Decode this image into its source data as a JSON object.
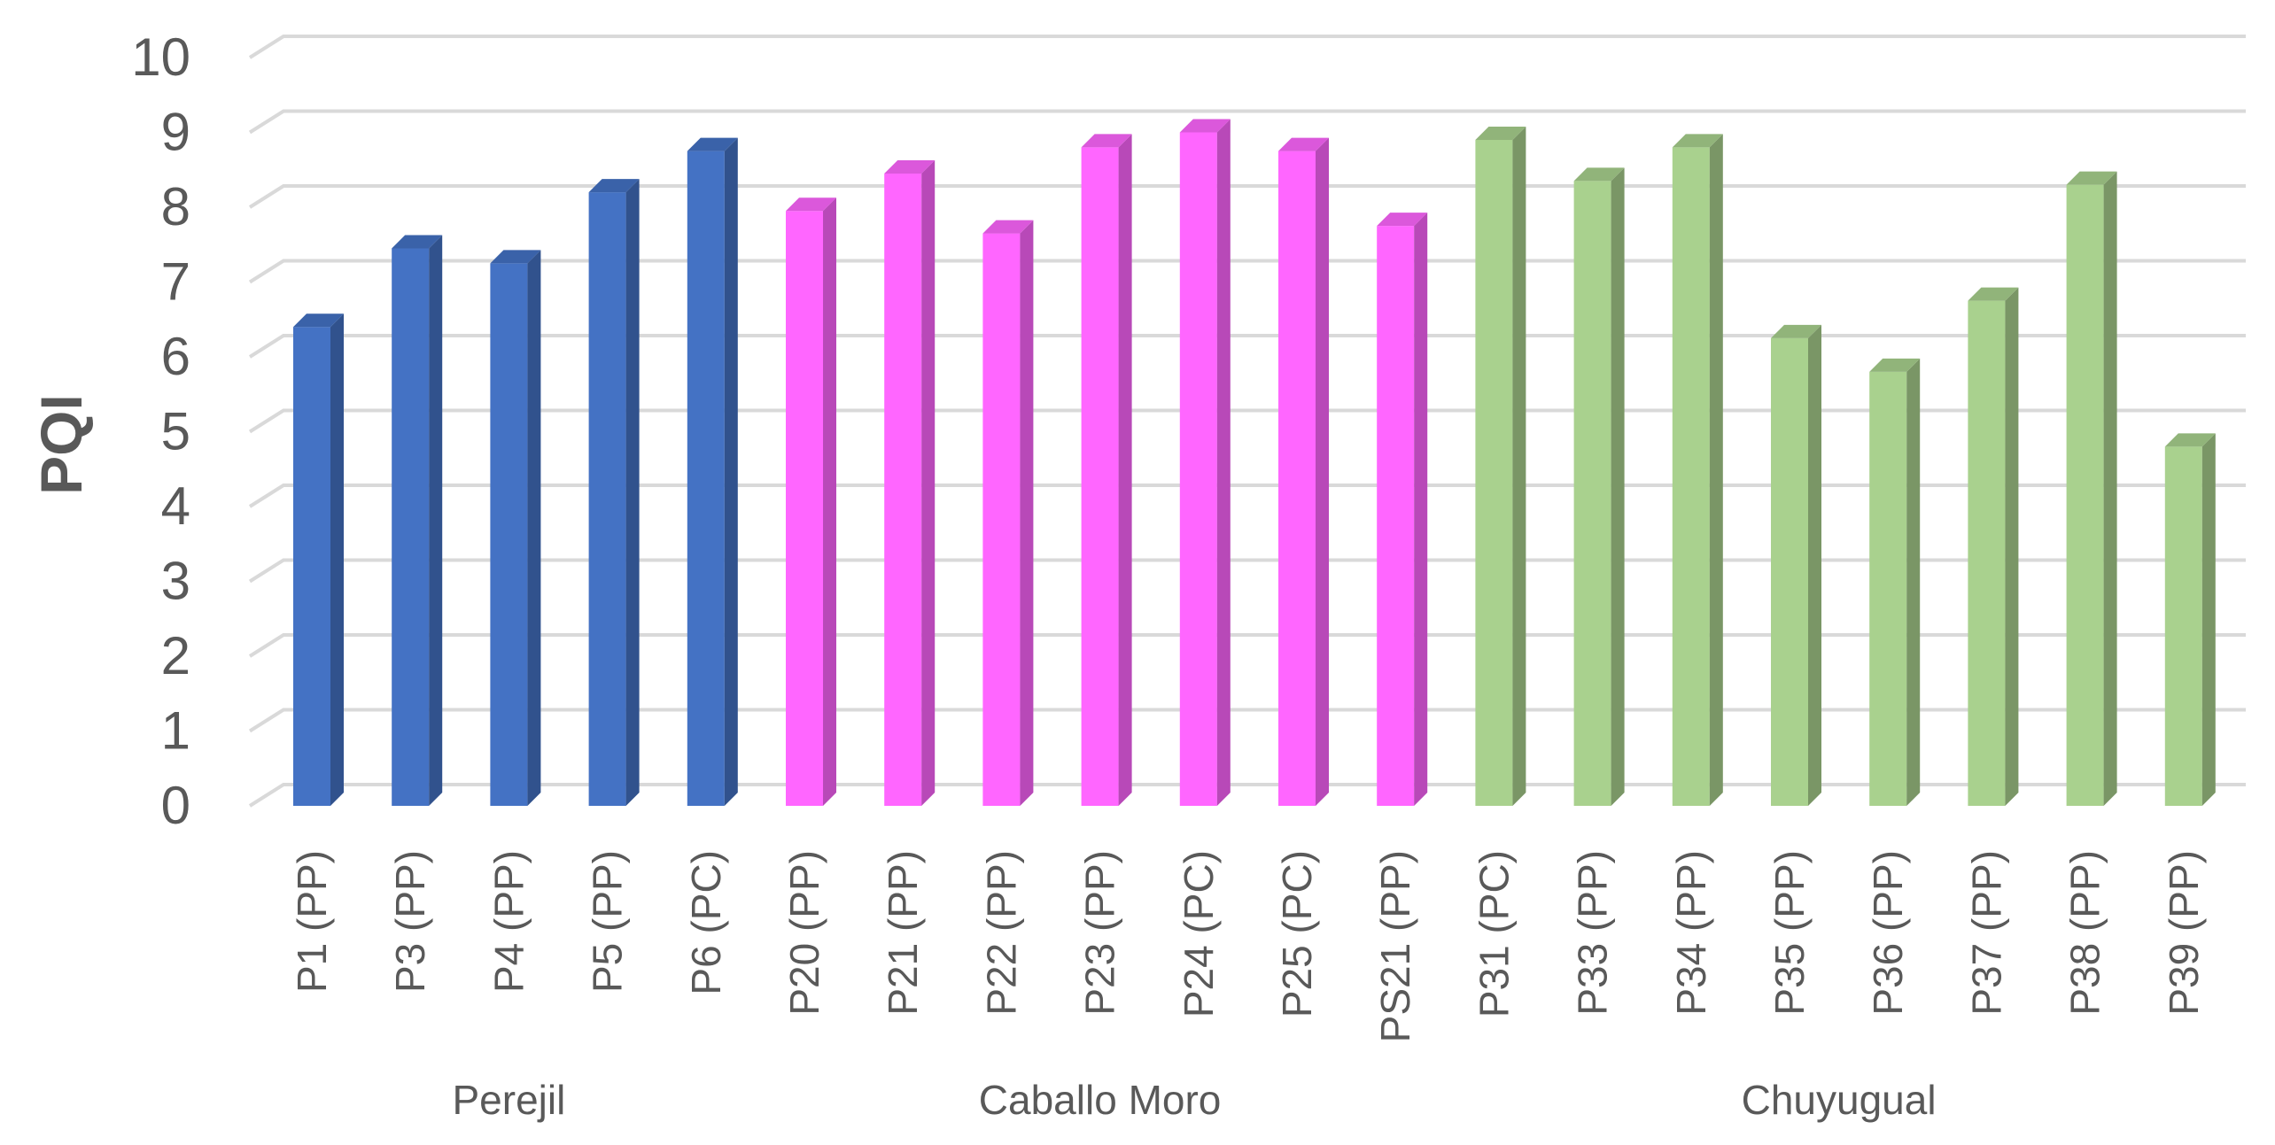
{
  "chart_data": {
    "type": "bar",
    "style": "3d-column",
    "ylabel": "PQI",
    "xlabel": "",
    "ylim": [
      0,
      10
    ],
    "yticks": [
      "0",
      "1",
      "2",
      "3",
      "4",
      "5",
      "6",
      "7",
      "8",
      "9",
      "10"
    ],
    "grid": true,
    "legend": "none",
    "categories": [
      "P1 (PP)",
      "P3 (PP)",
      "P4 (PP)",
      "P5 (PP)",
      "P6 (PC)",
      "P20 (PP)",
      "P21 (PP)",
      "P22 (PP)",
      "P23 (PP)",
      "P24 (PC)",
      "P25 (PC)",
      "PS21 (PP)",
      "P31 (PC)",
      "P33 (PP)",
      "P34 (PP)",
      "P35 (PP)",
      "P36 (PP)",
      "P37 (PP)",
      "P38 (PP)",
      "P39 (PP)"
    ],
    "values": [
      6.4,
      7.45,
      7.25,
      8.2,
      8.75,
      7.95,
      8.45,
      7.65,
      8.8,
      9.0,
      8.75,
      7.75,
      8.9,
      8.35,
      8.8,
      6.25,
      5.8,
      6.75,
      8.3,
      4.8
    ],
    "groups": [
      {
        "label": "Perejil",
        "start": 0,
        "end": 4,
        "color": "#4472C4"
      },
      {
        "label": "Caballo Moro",
        "start": 5,
        "end": 11,
        "color": "#FF66FF"
      },
      {
        "label": "Chuyugual",
        "start": 12,
        "end": 19,
        "color": "#A9D18E"
      }
    ]
  }
}
